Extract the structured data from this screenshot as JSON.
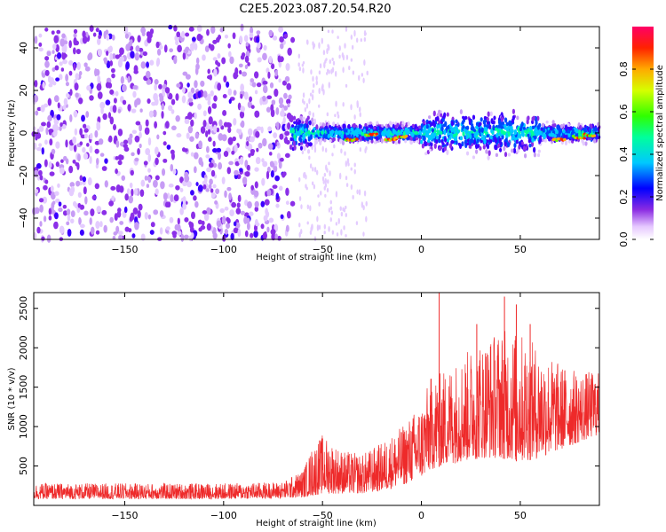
{
  "title": "C2E5.2023.087.20.54.R20",
  "chart_data": [
    {
      "type": "heatmap",
      "xlabel": "Height of straight line (km)",
      "ylabel": "Frequency (Hz)",
      "xlim": [
        -196,
        90
      ],
      "ylim": [
        -50,
        50
      ],
      "xticks": [
        -150,
        -100,
        -50,
        0,
        50
      ],
      "yticks": [
        -40,
        -20,
        0,
        20,
        40
      ],
      "colorbar": {
        "label": "Normalized spectral amplitude",
        "range": [
          0.0,
          1.0
        ],
        "ticks": [
          0.0,
          0.2,
          0.4,
          0.6,
          0.8
        ]
      },
      "grid": false
    },
    {
      "type": "line",
      "xlabel": "Height of straight line (km)",
      "ylabel": "SNR (10 * v/v)",
      "xlim": [
        -196,
        90
      ],
      "ylim": [
        0,
        2700
      ],
      "xticks": [
        -150,
        -100,
        -50,
        0,
        50
      ],
      "yticks": [
        500,
        1000,
        1500,
        2000,
        2500
      ],
      "color": "#ee2a2a",
      "envelope": [
        {
          "x": -196,
          "lo": 80,
          "hi": 280
        },
        {
          "x": -150,
          "lo": 80,
          "hi": 280
        },
        {
          "x": -100,
          "lo": 80,
          "hi": 280
        },
        {
          "x": -70,
          "lo": 90,
          "hi": 300
        },
        {
          "x": -60,
          "lo": 100,
          "hi": 450
        },
        {
          "x": -55,
          "lo": 120,
          "hi": 750
        },
        {
          "x": -50,
          "lo": 150,
          "hi": 900
        },
        {
          "x": -40,
          "lo": 150,
          "hi": 700
        },
        {
          "x": -30,
          "lo": 150,
          "hi": 650
        },
        {
          "x": -20,
          "lo": 180,
          "hi": 800
        },
        {
          "x": -10,
          "lo": 250,
          "hi": 1000
        },
        {
          "x": 0,
          "lo": 350,
          "hi": 1300
        },
        {
          "x": 5,
          "lo": 450,
          "hi": 1650
        },
        {
          "x": 10,
          "lo": 500,
          "hi": 1700
        },
        {
          "x": 20,
          "lo": 550,
          "hi": 1900
        },
        {
          "x": 30,
          "lo": 600,
          "hi": 2100
        },
        {
          "x": 40,
          "lo": 600,
          "hi": 2250
        },
        {
          "x": 50,
          "lo": 550,
          "hi": 2200
        },
        {
          "x": 60,
          "lo": 600,
          "hi": 2000
        },
        {
          "x": 70,
          "lo": 700,
          "hi": 1800
        },
        {
          "x": 80,
          "lo": 800,
          "hi": 1700
        },
        {
          "x": 90,
          "lo": 900,
          "hi": 1700
        }
      ],
      "peaks": [
        {
          "x": 9,
          "y": 2700
        },
        {
          "x": 42,
          "y": 2650
        },
        {
          "x": 28,
          "y": 2300
        },
        {
          "x": 55,
          "y": 2300
        },
        {
          "x": 48,
          "y": 2550
        }
      ]
    }
  ]
}
